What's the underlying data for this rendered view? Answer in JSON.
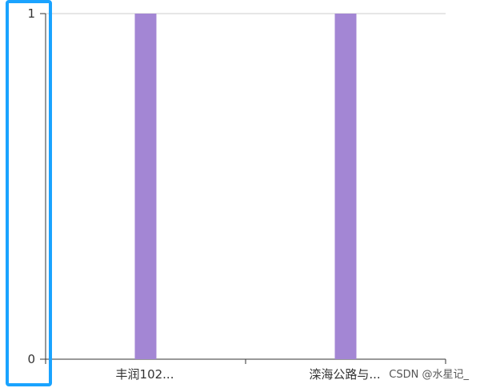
{
  "chart_data": {
    "type": "bar",
    "categories": [
      "丰润102...",
      "滦海公路与..."
    ],
    "values": [
      1,
      1
    ],
    "ylim": [
      0,
      1
    ],
    "yticks": [
      "0",
      "1"
    ],
    "grid": true,
    "bar_color": "#a386d4",
    "axis_color": "#333333",
    "grid_color": "#cccccc",
    "highlight_color": "#1aa3ff"
  },
  "watermark": "CSDN @水星记_"
}
